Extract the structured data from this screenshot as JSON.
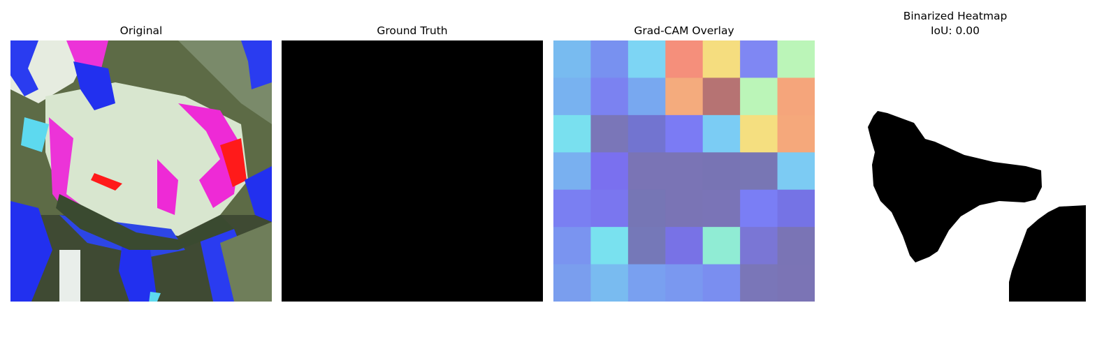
{
  "panels": [
    {
      "title": "Original"
    },
    {
      "title": "Ground Truth"
    },
    {
      "title": "Grad-CAM Overlay"
    },
    {
      "title": "Binarized Heatmap",
      "subtitle": "IoU: 0.00"
    }
  ],
  "gradcam_cells": [
    [
      "#78bbf0",
      "#7891f0",
      "#7dd5f4",
      "#f58f7b",
      "#f5dd7f",
      "#7f87f3",
      "#bbf5b8"
    ],
    [
      "#78b2f0",
      "#7b82f1",
      "#78a8f0",
      "#f4ab7d",
      "#b67373",
      "#bbf5b8",
      "#f5a57b"
    ],
    [
      "#79e0ef",
      "#7a76b8",
      "#7274d0",
      "#7b7bf4",
      "#7bccf4",
      "#f5df80",
      "#f5a87b"
    ],
    [
      "#79b0f0",
      "#7a70ef",
      "#7a74b5",
      "#7a74b5",
      "#7874b4",
      "#7876b4",
      "#7ccbf3"
    ],
    [
      "#7a7ff2",
      "#7a76ef",
      "#7676b5",
      "#7a74b5",
      "#7a74b7",
      "#7a7ef5",
      "#7573e5"
    ],
    [
      "#7a94f0",
      "#79e1ef",
      "#7578b8",
      "#7872e6",
      "#90ecd4",
      "#7a76d5",
      "#7a74b5"
    ],
    [
      "#7a9eee",
      "#79bbf0",
      "#79a0f0",
      "#7a98f0",
      "#7a8ef0",
      "#7a76b8",
      "#7b74b5"
    ]
  ]
}
